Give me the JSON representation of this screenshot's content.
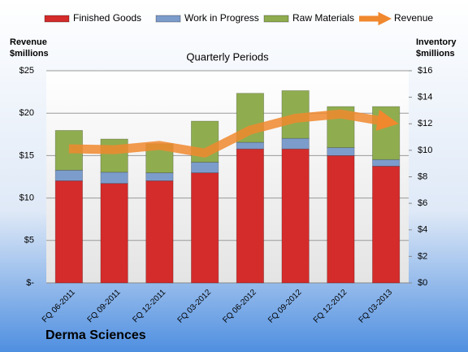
{
  "chart_data": {
    "type": "bar",
    "stacked": true,
    "title": "Quarterly Periods",
    "y_label": "Revenue $millions",
    "y2_label": "Inventory $millions",
    "company": "Derma Sciences",
    "categories": [
      "FQ 06-2011",
      "FQ 09-2011",
      "FQ 12-2011",
      "FQ 03-2012",
      "FQ 06-2012",
      "FQ 09-2012",
      "FQ 12-2012",
      "FQ 03-2013"
    ],
    "series": [
      {
        "name": "Finished Goods",
        "color": "#d42b2b",
        "axis": "y2",
        "values": [
          7.7,
          7.5,
          7.7,
          8.3,
          10.1,
          10.1,
          9.6,
          8.8
        ]
      },
      {
        "name": "Work in Progress",
        "color": "#7c9ccc",
        "axis": "y2",
        "values": [
          0.8,
          0.85,
          0.6,
          0.8,
          0.5,
          0.8,
          0.6,
          0.5
        ]
      },
      {
        "name": "Raw Materials",
        "color": "#8fad4f",
        "axis": "y2",
        "values": [
          3.0,
          2.5,
          2.2,
          3.1,
          3.7,
          3.6,
          3.1,
          4.0
        ]
      },
      {
        "name": "Revenue",
        "color": "#f0882e",
        "type": "line",
        "axis": "y",
        "values": [
          15.8,
          15.7,
          16.2,
          15.3,
          18.0,
          19.4,
          19.9,
          19.0
        ]
      }
    ],
    "ylim": [
      0,
      25
    ],
    "yticks": [
      {
        "value": 0,
        "label": "$-"
      },
      {
        "value": 5,
        "label": "$5"
      },
      {
        "value": 10,
        "label": "$10"
      },
      {
        "value": 15,
        "label": "$15"
      },
      {
        "value": 20,
        "label": "$20"
      },
      {
        "value": 25,
        "label": "$25"
      }
    ],
    "y2lim": [
      0,
      16
    ],
    "y2ticks": [
      {
        "value": 0,
        "label": "$0"
      },
      {
        "value": 2,
        "label": "$2"
      },
      {
        "value": 4,
        "label": "$4"
      },
      {
        "value": 6,
        "label": "$6"
      },
      {
        "value": 8,
        "label": "$8"
      },
      {
        "value": 10,
        "label": "$10"
      },
      {
        "value": 12,
        "label": "$12"
      },
      {
        "value": 14,
        "label": "$14"
      },
      {
        "value": 16,
        "label": "$16"
      }
    ],
    "grid": true,
    "legend": "top"
  }
}
